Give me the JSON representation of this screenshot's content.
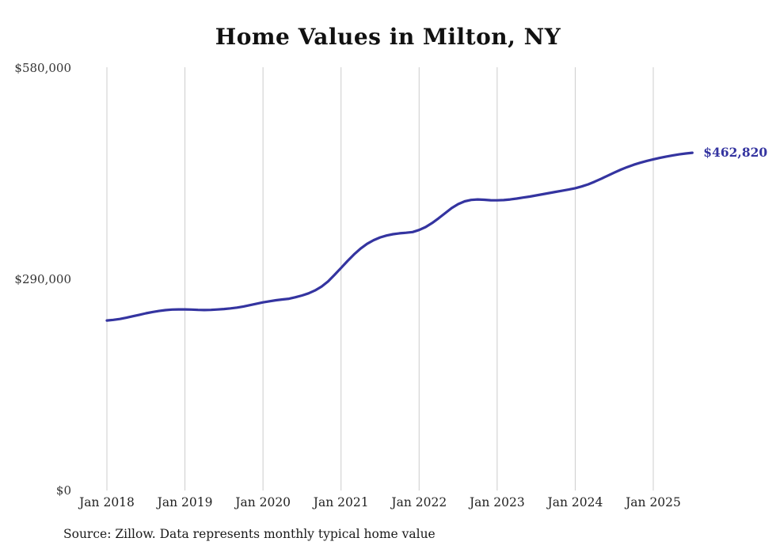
{
  "page": {
    "title": "Home Values in Milton, NY",
    "source_note": "Source: Zillow. Data represents monthly typical home value"
  },
  "chart_data": {
    "type": "line",
    "title": "Home Values in Milton, NY",
    "series_name": "Monthly typical home value",
    "line_color": "#3434a0",
    "gridline_color": "#cccccc",
    "grid": "vertical-only",
    "legend": "none",
    "ylim": [
      0,
      580000
    ],
    "yticks": [
      580000,
      290000,
      0
    ],
    "ytick_labels": [
      "$580,000",
      "$290,000",
      "$0"
    ],
    "xtick_labels": [
      "Jan 2018",
      "Jan 2019",
      "Jan 2020",
      "Jan 2021",
      "Jan 2022",
      "Jan 2023",
      "Jan 2024",
      "Jan 2025"
    ],
    "end_label": "$462,820",
    "end_value": 462820,
    "source": "Source: Zillow. Data represents monthly typical home value",
    "x": [
      "2018-01",
      "2018-02",
      "2018-03",
      "2018-04",
      "2018-05",
      "2018-06",
      "2018-07",
      "2018-08",
      "2018-09",
      "2018-10",
      "2018-11",
      "2018-12",
      "2019-01",
      "2019-02",
      "2019-03",
      "2019-04",
      "2019-05",
      "2019-06",
      "2019-07",
      "2019-08",
      "2019-09",
      "2019-10",
      "2019-11",
      "2019-12",
      "2020-01",
      "2020-02",
      "2020-03",
      "2020-04",
      "2020-05",
      "2020-06",
      "2020-07",
      "2020-08",
      "2020-09",
      "2020-10",
      "2020-11",
      "2020-12",
      "2021-01",
      "2021-02",
      "2021-03",
      "2021-04",
      "2021-05",
      "2021-06",
      "2021-07",
      "2021-08",
      "2021-09",
      "2021-10",
      "2021-11",
      "2021-12",
      "2022-01",
      "2022-02",
      "2022-03",
      "2022-04",
      "2022-05",
      "2022-06",
      "2022-07",
      "2022-08",
      "2022-09",
      "2022-10",
      "2022-11",
      "2022-12",
      "2023-01",
      "2023-02",
      "2023-03",
      "2023-04",
      "2023-05",
      "2023-06",
      "2023-07",
      "2023-08",
      "2023-09",
      "2023-10",
      "2023-11",
      "2023-12",
      "2024-01",
      "2024-02",
      "2024-03",
      "2024-04",
      "2024-05",
      "2024-06",
      "2024-07",
      "2024-08",
      "2024-09",
      "2024-10",
      "2024-11",
      "2024-12",
      "2025-01",
      "2025-02",
      "2025-03",
      "2025-04",
      "2025-05",
      "2025-06",
      "2025-07"
    ],
    "values": [
      233000,
      233800,
      235000,
      236800,
      238800,
      240800,
      242800,
      244600,
      246000,
      247200,
      247900,
      248200,
      248200,
      247900,
      247500,
      247300,
      247500,
      248000,
      248700,
      249600,
      250700,
      252200,
      254000,
      256000,
      257800,
      259300,
      260700,
      261800,
      262800,
      264800,
      267200,
      270200,
      274200,
      279500,
      286500,
      295500,
      305000,
      314500,
      323500,
      331500,
      338000,
      343000,
      346800,
      349400,
      351200,
      352400,
      353200,
      354200,
      357000,
      361000,
      366500,
      373000,
      380000,
      387000,
      392500,
      396200,
      398200,
      398800,
      398400,
      397800,
      397600,
      398000,
      398800,
      400000,
      401400,
      402800,
      404400,
      406000,
      407600,
      409200,
      410800,
      412400,
      414200,
      416600,
      419600,
      423200,
      427200,
      431400,
      435600,
      439600,
      443200,
      446400,
      449200,
      451600,
      453800,
      455800,
      457600,
      459200,
      460600,
      461800,
      462820
    ]
  }
}
